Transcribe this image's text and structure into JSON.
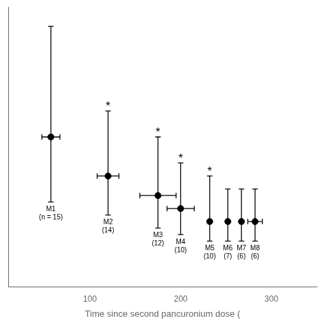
{
  "chart_data": {
    "type": "scatter",
    "xlabel": "Time since second pancuronium dose (",
    "x": [
      57,
      120,
      175,
      200,
      232,
      252,
      267,
      282
    ],
    "values": [
      18,
      12,
      9,
      7,
      5,
      5,
      5,
      5
    ],
    "xerr": [
      10,
      12,
      20,
      15,
      0,
      0,
      0,
      8
    ],
    "yerr_lo": [
      10,
      6,
      5,
      4,
      3,
      3,
      3,
      3
    ],
    "yerr_hi": [
      17,
      10,
      9,
      7,
      7,
      5,
      5,
      5
    ],
    "point_labels": [
      "M1\n(n = 15)",
      "M2\n(14)",
      "M3\n(12)",
      "M4\n(10)",
      "M5\n(10)",
      "M6\n(7)",
      "M7\n(6)",
      "M8\n(6)"
    ],
    "annotations": [
      {
        "text": "*",
        "x": 120,
        "y": 12
      },
      {
        "text": "*",
        "x": 175,
        "y": 9
      },
      {
        "text": "*",
        "x": 200,
        "y": 7
      },
      {
        "text": "*",
        "x": 232,
        "y": 5
      }
    ],
    "xlim": [
      10,
      350
    ],
    "xticks": [
      100,
      200,
      300
    ],
    "ylim": [
      -5,
      38
    ],
    "tick_labels": "x",
    "grid": false,
    "color": "black",
    "marker": "circle"
  }
}
